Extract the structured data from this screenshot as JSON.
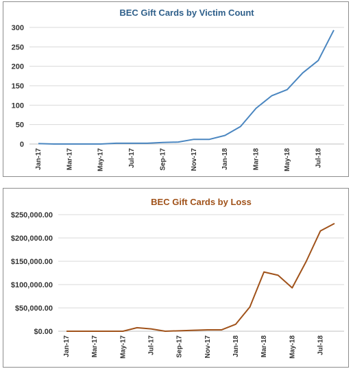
{
  "chart_data": [
    {
      "type": "line",
      "title": "BEC Gift Cards by Victim Count",
      "title_color": "#2e5f8a",
      "line_color": "#4a86c0",
      "xlabel": "",
      "ylabel": "",
      "categories": [
        "Jan-17",
        "Feb-17",
        "Mar-17",
        "Apr-17",
        "May-17",
        "Jun-17",
        "Jul-17",
        "Aug-17",
        "Sep-17",
        "Oct-17",
        "Nov-17",
        "Dec-17",
        "Jan-18",
        "Feb-18",
        "Mar-18",
        "Apr-18",
        "May-18",
        "Jun-18",
        "Jul-18",
        "Aug-18"
      ],
      "tick_labels": [
        "Jan-17",
        "Mar-17",
        "May-17",
        "Jul-17",
        "Sep-17",
        "Nov-17",
        "Jan-18",
        "Mar-18",
        "May-18",
        "Jul-18"
      ],
      "values": [
        1,
        0,
        0,
        0,
        0,
        2,
        2,
        2,
        4,
        5,
        12,
        12,
        22,
        45,
        92,
        124,
        140,
        183,
        215,
        293
      ],
      "ylim": [
        0,
        300
      ],
      "yticks": [
        0,
        50,
        100,
        150,
        200,
        250,
        300
      ],
      "ytick_labels": [
        "0",
        "50",
        "100",
        "150",
        "200",
        "250",
        "300"
      ],
      "grid": true,
      "legend": "none"
    },
    {
      "type": "line",
      "title": "BEC Gift Cards by Loss",
      "title_color": "#a0521a",
      "line_color": "#a0521a",
      "xlabel": "",
      "ylabel": "",
      "categories": [
        "Jan-17",
        "Feb-17",
        "Mar-17",
        "Apr-17",
        "May-17",
        "Jun-17",
        "Jul-17",
        "Aug-17",
        "Sep-17",
        "Oct-17",
        "Nov-17",
        "Dec-17",
        "Jan-18",
        "Feb-18",
        "Mar-18",
        "Apr-18",
        "May-18",
        "Jun-18",
        "Jul-18",
        "Aug-18"
      ],
      "tick_labels": [
        "Jan-17",
        "Mar-17",
        "May-17",
        "Jul-17",
        "Sep-17",
        "Nov-17",
        "Jan-18",
        "Mar-18",
        "May-18",
        "Jul-18"
      ],
      "values": [
        0,
        0,
        0,
        0,
        0,
        7500,
        5000,
        0,
        1000,
        2000,
        3000,
        3000,
        15000,
        52000,
        127000,
        120000,
        93000,
        150000,
        215000,
        231000
      ],
      "ylim": [
        0,
        250000
      ],
      "yticks": [
        0,
        50000,
        100000,
        150000,
        200000,
        250000
      ],
      "ytick_labels": [
        "$0.00",
        "$50,000.00",
        "$100,000.00",
        "$150,000.00",
        "$200,000.00",
        "$250,000.00"
      ],
      "grid": true,
      "legend": "none"
    }
  ]
}
